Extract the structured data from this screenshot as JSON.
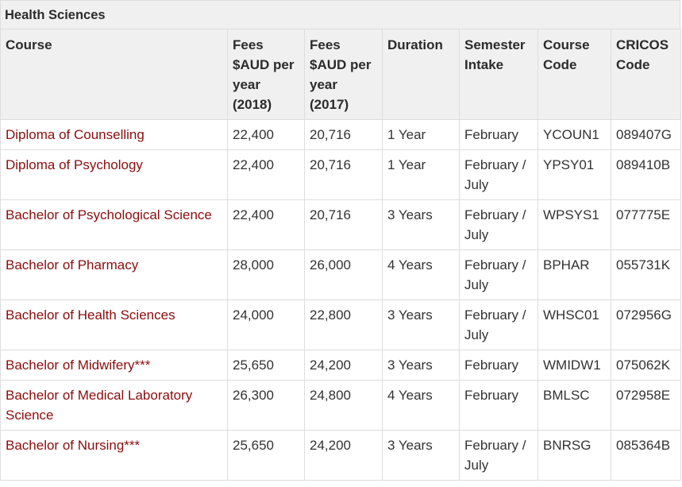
{
  "section_title": "Health Sciences",
  "columns": [
    "Course",
    "Fees $AUD per year (2018)",
    "Fees $AUD per year (2017)",
    "Duration",
    "Semester Intake",
    "Course Code",
    "CRICOS Code"
  ],
  "rows": [
    {
      "course": "Diploma of Counselling",
      "fee2018": "22,400",
      "fee2017": "20,716",
      "duration": "1 Year",
      "intake": "February",
      "code": "YCOUN1",
      "cricos": "089407G"
    },
    {
      "course": "Diploma of Psychology",
      "fee2018": "22,400",
      "fee2017": "20,716",
      "duration": "1 Year",
      "intake": "February / July",
      "code": "YPSY01",
      "cricos": "089410B"
    },
    {
      "course": "Bachelor of Psychological Science",
      "fee2018": "22,400",
      "fee2017": "20,716",
      "duration": "3 Years",
      "intake": "February / July",
      "code": "WPSYS1",
      "cricos": "077775E"
    },
    {
      "course": "Bachelor of Pharmacy",
      "fee2018": "28,000",
      "fee2017": "26,000",
      "duration": "4 Years",
      "intake": "February / July",
      "code": "BPHAR",
      "cricos": "055731K"
    },
    {
      "course": "Bachelor of Health Sciences",
      "fee2018": "24,000",
      "fee2017": "22,800",
      "duration": "3 Years",
      "intake": "February / July",
      "code": "WHSC01",
      "cricos": "072956G"
    },
    {
      "course": "Bachelor of Midwifery***",
      "fee2018": "25,650",
      "fee2017": "24,200",
      "duration": "3 Years",
      "intake": "February",
      "code": "WMIDW1",
      "cricos": "075062K"
    },
    {
      "course": "Bachelor of Medical Laboratory Science",
      "fee2018": "26,300",
      "fee2017": "24,800",
      "duration": "4 Years",
      "intake": "February",
      "code": "BMLSC",
      "cricos": "072958E"
    },
    {
      "course": "Bachelor of Nursing***",
      "fee2018": "25,650",
      "fee2017": "24,200",
      "duration": "3 Years",
      "intake": "February / July",
      "code": "BNRSG",
      "cricos": "085364B"
    }
  ],
  "colors": {
    "link": "#8b0d0d",
    "header_bg": "#f0f0f0",
    "border": "#dddddd",
    "text": "#333333"
  }
}
